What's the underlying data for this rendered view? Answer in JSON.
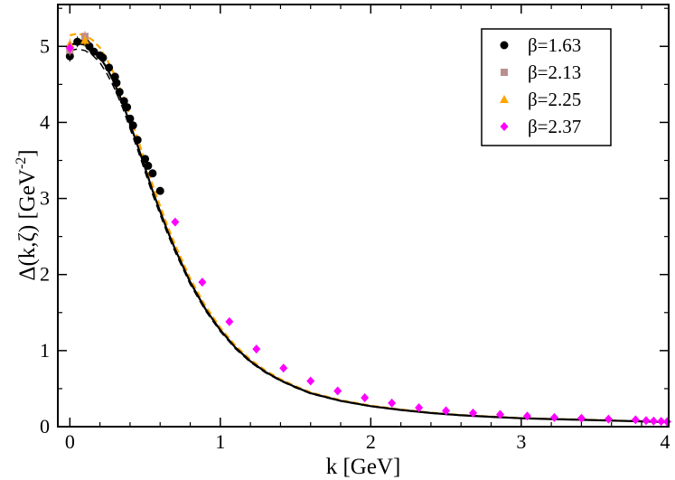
{
  "chart_data": {
    "type": "scatter",
    "title": "",
    "xlabel": "k [GeV]",
    "ylabel": "Δ(k,ζ) [GeV",
    "ylabel_exponent": "-2",
    "ylabel_suffix": "]",
    "xlim": [
      -0.08,
      3.98
    ],
    "ylim": [
      0,
      5.55
    ],
    "grid": false,
    "legend_position": "top-right",
    "x_ticks": [
      {
        "value": 0,
        "label": "0"
      },
      {
        "value": 1,
        "label": "1"
      },
      {
        "value": 2,
        "label": "2"
      },
      {
        "value": 3,
        "label": "3"
      },
      {
        "value": 4,
        "label": "4"
      }
    ],
    "y_ticks": [
      {
        "value": 0,
        "label": "0"
      },
      {
        "value": 1,
        "label": "1"
      },
      {
        "value": 2,
        "label": "2"
      },
      {
        "value": 3,
        "label": "3"
      },
      {
        "value": 4,
        "label": "4"
      },
      {
        "value": 5,
        "label": "5"
      }
    ],
    "fit_curve": {
      "x": [
        0.0,
        0.05,
        0.1,
        0.15,
        0.2,
        0.25,
        0.3,
        0.35,
        0.4,
        0.45,
        0.5,
        0.55,
        0.6,
        0.65,
        0.7,
        0.8,
        0.9,
        1.0,
        1.1,
        1.2,
        1.3,
        1.4,
        1.5,
        1.6,
        1.8,
        2.0,
        2.2,
        2.4,
        2.6,
        2.8,
        3.0,
        3.2,
        3.4,
        3.6,
        3.8,
        3.98
      ],
      "y": [
        5.02,
        5.04,
        5.02,
        4.96,
        4.86,
        4.7,
        4.5,
        4.26,
        3.98,
        3.7,
        3.4,
        3.1,
        2.83,
        2.57,
        2.33,
        1.9,
        1.55,
        1.27,
        1.04,
        0.86,
        0.72,
        0.61,
        0.52,
        0.44,
        0.34,
        0.27,
        0.22,
        0.18,
        0.15,
        0.13,
        0.11,
        0.1,
        0.09,
        0.08,
        0.07,
        0.06
      ]
    },
    "series": [
      {
        "name": "β=1.63",
        "color": "#000000",
        "marker": "circle",
        "x": [
          0.0,
          0.05,
          0.1,
          0.13,
          0.16,
          0.2,
          0.22,
          0.26,
          0.3,
          0.31,
          0.33,
          0.36,
          0.38,
          0.4,
          0.42,
          0.45,
          0.5,
          0.52,
          0.55,
          0.6
        ],
        "y": [
          4.87,
          5.06,
          5.07,
          5.0,
          4.93,
          4.88,
          4.85,
          4.72,
          4.6,
          4.52,
          4.4,
          4.28,
          4.2,
          4.05,
          3.96,
          3.77,
          3.52,
          3.43,
          3.33,
          3.1
        ]
      },
      {
        "name": "β=2.13",
        "color": "#bc8f8f",
        "marker": "square",
        "x": [
          0.0,
          0.1
        ],
        "y": [
          4.95,
          5.13
        ]
      },
      {
        "name": "β=2.25",
        "color": "#ffa500",
        "marker": "triangle",
        "x": [
          0.0,
          0.1
        ],
        "y": [
          5.03,
          5.08
        ]
      },
      {
        "name": "β=2.37",
        "color": "#ff00ff",
        "marker": "diamond",
        "x": [
          0.0,
          0.7,
          0.88,
          1.06,
          1.24,
          1.42,
          1.6,
          1.78,
          1.96,
          2.14,
          2.32,
          2.5,
          2.68,
          2.86,
          3.04,
          3.22,
          3.4,
          3.58,
          3.76,
          3.83,
          3.88,
          3.93,
          3.97
        ],
        "y": [
          4.98,
          2.69,
          1.9,
          1.38,
          1.02,
          0.77,
          0.6,
          0.47,
          0.38,
          0.31,
          0.25,
          0.21,
          0.18,
          0.16,
          0.14,
          0.12,
          0.11,
          0.1,
          0.09,
          0.08,
          0.075,
          0.07,
          0.065
        ]
      }
    ]
  }
}
